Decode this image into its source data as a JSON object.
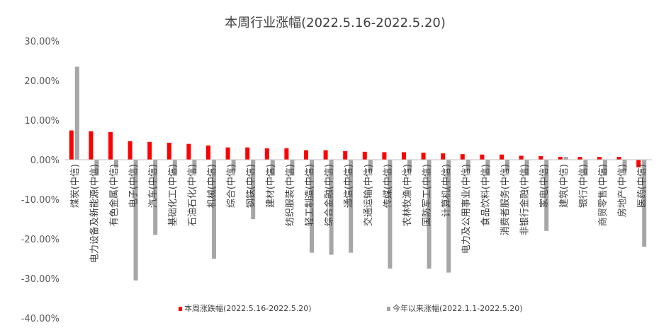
{
  "chart_data": {
    "type": "bar",
    "title": "本周行业涨幅(2022.5.16-2022.5.20)",
    "categories": [
      "煤炭(中信)",
      "电力设备及新能源(中信)",
      "有色金属(中信)",
      "电子(中信)",
      "汽车(中信)",
      "基础化工(中信)",
      "石油石化(中信)",
      "机械(中信)",
      "综合(中信)",
      "钢铁(中信)",
      "建材(中信)",
      "纺织服装(中信)",
      "轻工制造(中信)",
      "综合金融(中信)",
      "通信(中信)",
      "交通运输(中信)",
      "传媒(中信)",
      "农林牧渔(中信)",
      "国防军工(中信)",
      "计算机(中信)",
      "电力及公用事业(中信)",
      "食品饮料(中信)",
      "消费者服务(中信)",
      "非银行金融(中信)",
      "家电(中信)",
      "建筑(中信)",
      "银行(中信)",
      "商贸零售(中信)",
      "房地产(中信)",
      "医药(中信)"
    ],
    "series": [
      {
        "name": "本周涨跌幅(2022.5.16-2022.5.20)",
        "color": "#ff0000",
        "values": [
          7.4,
          7.2,
          7.0,
          4.7,
          4.5,
          4.3,
          4.0,
          3.6,
          3.1,
          3.1,
          2.9,
          2.9,
          2.4,
          2.4,
          2.2,
          2.0,
          1.9,
          1.9,
          1.8,
          1.6,
          1.4,
          1.3,
          1.3,
          1.0,
          0.9,
          0.7,
          0.7,
          0.7,
          0.7,
          -1.9
        ]
      },
      {
        "name": "今年以来涨幅(2022.1.1-2022.5.20)",
        "color": "#a6a6a6",
        "values": [
          23.5,
          -4.0,
          -2.0,
          -30.5,
          -19.0,
          -4.0,
          -3.5,
          -25.0,
          -3.0,
          -15.0,
          -4.0,
          -4.0,
          -23.5,
          -24.0,
          -23.5,
          -3.0,
          -27.5,
          -3.0,
          -27.5,
          -28.5,
          -3.0,
          -4.0,
          -3.0,
          -4.0,
          -18.0,
          0.7,
          -4.0,
          -4.0,
          -3.0,
          -22.0
        ]
      }
    ],
    "yticks": [
      "30.00%",
      "20.00%",
      "10.00%",
      "0.00%",
      "-10.00%",
      "-20.00%",
      "-30.00%",
      "-40.00%"
    ],
    "ylim": [
      -40,
      30
    ],
    "legend_position": "bottom",
    "grid": false
  }
}
